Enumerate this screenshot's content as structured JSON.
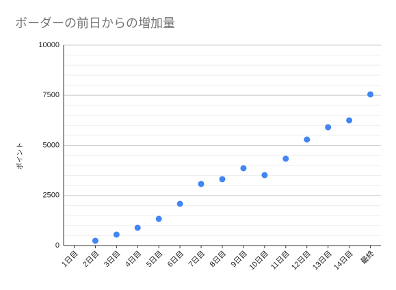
{
  "chart_data": {
    "type": "scatter",
    "title": "ボーダーの前日からの増加量",
    "y_label": "ポイント",
    "categories": [
      "1日目",
      "2日目",
      "3日目",
      "4日目",
      "5日目",
      "6日目",
      "7日目",
      "8日目",
      "9日目",
      "10日目",
      "11日目",
      "12日目",
      "13日目",
      "14日目",
      "最終"
    ],
    "values": [
      null,
      240,
      546,
      887,
      1331,
      2082,
      3072,
      3311,
      3857,
      3515,
      4334,
      5290,
      5904,
      6246,
      7543
    ],
    "color": "#4285f4",
    "ylim": [
      0,
      10000
    ],
    "yticks": [
      0,
      2500,
      5000,
      7500,
      10000
    ],
    "grid": true,
    "minor_grid": true
  }
}
